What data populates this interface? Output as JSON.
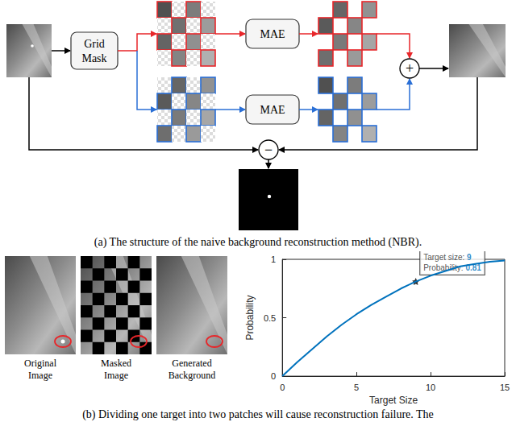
{
  "diagram": {
    "panel_a": {
      "blocks": {
        "grid_mask": "Grid Mask",
        "mae_top": "MAE",
        "mae_bottom": "MAE"
      },
      "operators": {
        "add": "+",
        "subtract": "−"
      },
      "caption": "(a) The structure of the naive background reconstruction method (NBR)."
    },
    "panel_b": {
      "image_labels": [
        "Original Image",
        "Masked Image",
        "Generated Background"
      ],
      "caption": "(b) Dividing one target into two patches will cause reconstruction failure. The"
    }
  },
  "chart_data": {
    "type": "line",
    "x": [
      0,
      1,
      2,
      3,
      4,
      5,
      6,
      7,
      8,
      9,
      10,
      11,
      12,
      13,
      14,
      15
    ],
    "values": [
      0,
      0.12,
      0.23,
      0.34,
      0.44,
      0.53,
      0.61,
      0.68,
      0.75,
      0.81,
      0.86,
      0.9,
      0.94,
      0.96,
      0.98,
      0.99
    ],
    "color": "#0072bd",
    "x_label": "Target Size",
    "y_label": "Probability",
    "xlim": [
      0,
      15
    ],
    "ylim": [
      0,
      1
    ],
    "xticks": [
      0,
      5,
      10,
      15
    ],
    "yticks": [
      0,
      0.5,
      1
    ],
    "grid": false,
    "annotation": {
      "x": 9,
      "y": 0.81,
      "x_text": "Target size:",
      "y_text": "Probability:"
    }
  }
}
